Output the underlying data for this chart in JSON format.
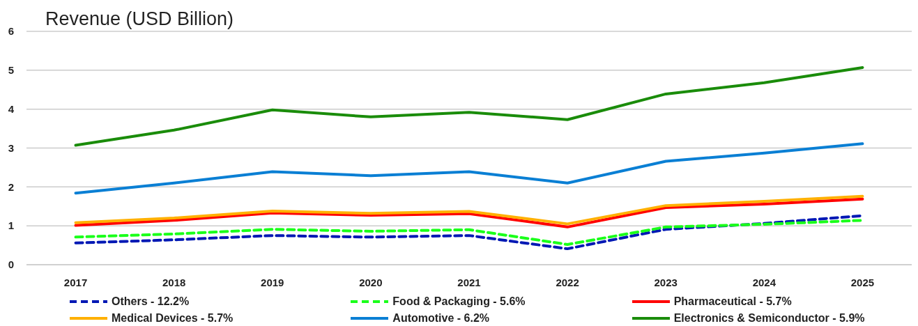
{
  "chart_data": {
    "type": "line",
    "title": "Revenue (USD Billion)",
    "categories": [
      "2017",
      "2018",
      "2019",
      "2020",
      "2021",
      "2022",
      "2023",
      "2024",
      "2025"
    ],
    "ylim": [
      0,
      6
    ],
    "yticks": [
      0,
      1,
      2,
      3,
      4,
      5,
      6
    ],
    "grid": "y",
    "legend": "bottom",
    "marker": "none",
    "series": [
      {
        "name": "Others - 12.2%",
        "color": "#0018b4",
        "line_style": "dashed",
        "values": [
          0.56,
          0.64,
          0.75,
          0.71,
          0.75,
          0.41,
          0.91,
          1.06,
          1.26
        ]
      },
      {
        "name": "Food & Packaging - 5.6%",
        "color": "#1aff1a",
        "line_style": "dashed",
        "values": [
          0.71,
          0.79,
          0.91,
          0.86,
          0.9,
          0.52,
          0.97,
          1.04,
          1.14
        ]
      },
      {
        "name": "Pharmaceutical - 5.7%",
        "color": "#ff0000",
        "line_style": "solid",
        "values": [
          1.01,
          1.14,
          1.33,
          1.27,
          1.31,
          0.97,
          1.47,
          1.56,
          1.69
        ]
      },
      {
        "name": "Medical Devices - 5.7%",
        "color": "#ffb000",
        "line_style": "solid",
        "values": [
          1.08,
          1.2,
          1.38,
          1.32,
          1.37,
          1.05,
          1.52,
          1.63,
          1.76
        ]
      },
      {
        "name": "Automotive - 6.2%",
        "color": "#0a7fd4",
        "line_style": "solid",
        "values": [
          1.84,
          2.1,
          2.39,
          2.29,
          2.39,
          2.1,
          2.66,
          2.87,
          3.11
        ]
      },
      {
        "name": "Electronics & Semiconductor - 5.9%",
        "color": "#1a8c0a",
        "line_style": "solid",
        "values": [
          3.07,
          3.46,
          3.98,
          3.8,
          3.92,
          3.73,
          4.39,
          4.68,
          5.07
        ]
      }
    ]
  }
}
